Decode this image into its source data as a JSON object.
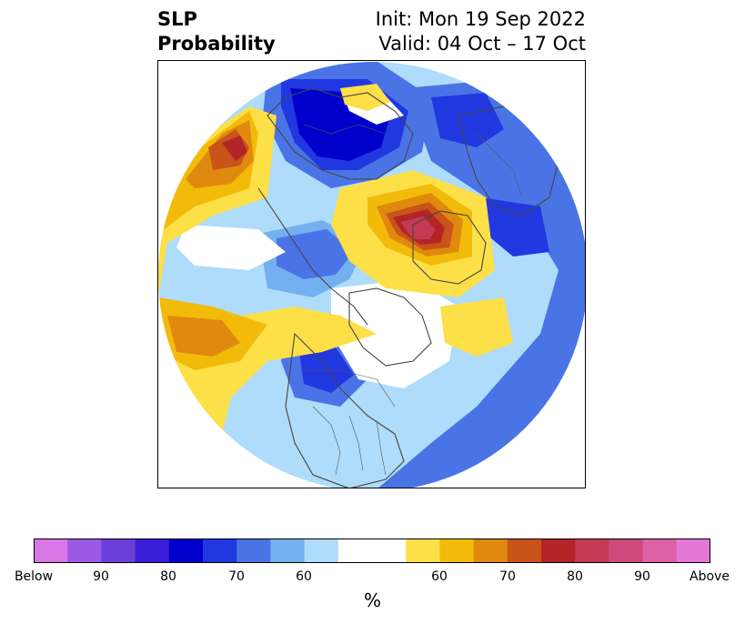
{
  "title": {
    "left_line1": "SLP",
    "left_line2": "Probability",
    "right_line1": "Init: Mon 19 Sep 2022",
    "right_line2": "Valid: 04 Oct – 17 Oct"
  },
  "map": {
    "projection": "north-polar-stereographic",
    "features": [
      "coastlines",
      "country-borders",
      "us-state-borders"
    ]
  },
  "colorbar": {
    "unit_label": "%",
    "tick_labels": [
      "Below",
      "90",
      "80",
      "70",
      "60",
      "60",
      "70",
      "80",
      "90",
      "Above"
    ],
    "colors": [
      "#d977e7",
      "#9b59e3",
      "#6a3fd9",
      "#3a1dd6",
      "#0000cc",
      "#2137e0",
      "#4a74e6",
      "#74b0f0",
      "#aedcfa",
      "#ffffff",
      "#fde047",
      "#f2bb0a",
      "#df8a0f",
      "#c95318",
      "#b22425",
      "#c43a55",
      "#cc4b7c",
      "#dc62a6",
      "#e577d9"
    ]
  }
}
